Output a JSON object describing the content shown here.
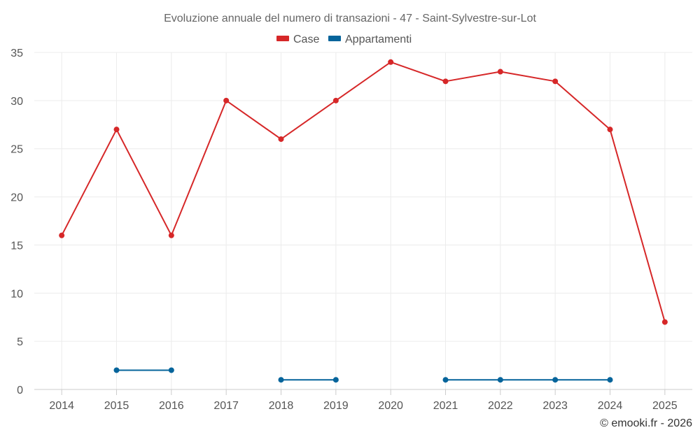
{
  "chart_data": {
    "type": "line",
    "title": "Evoluzione annuale del numero di transazioni - 47 - Saint-Sylvestre-sur-Lot",
    "categories": [
      "2014",
      "2015",
      "2016",
      "2017",
      "2018",
      "2019",
      "2020",
      "2021",
      "2022",
      "2023",
      "2024",
      "2025"
    ],
    "ylim": [
      0,
      35
    ],
    "yticks": [
      "0",
      "5",
      "10",
      "15",
      "20",
      "25",
      "30",
      "35"
    ],
    "xlabel": "",
    "ylabel": "",
    "grid": true,
    "legend_position": "top-center",
    "series": [
      {
        "name": "Case",
        "color": "#d62728",
        "values": [
          16,
          27,
          16,
          30,
          26,
          30,
          34,
          32,
          33,
          32,
          27,
          7
        ]
      },
      {
        "name": "Appartamenti",
        "color": "#05649b",
        "values": [
          null,
          2,
          2,
          null,
          1,
          1,
          null,
          1,
          1,
          1,
          1,
          null
        ]
      }
    ],
    "credit": "© emooki.fr - 2026"
  }
}
